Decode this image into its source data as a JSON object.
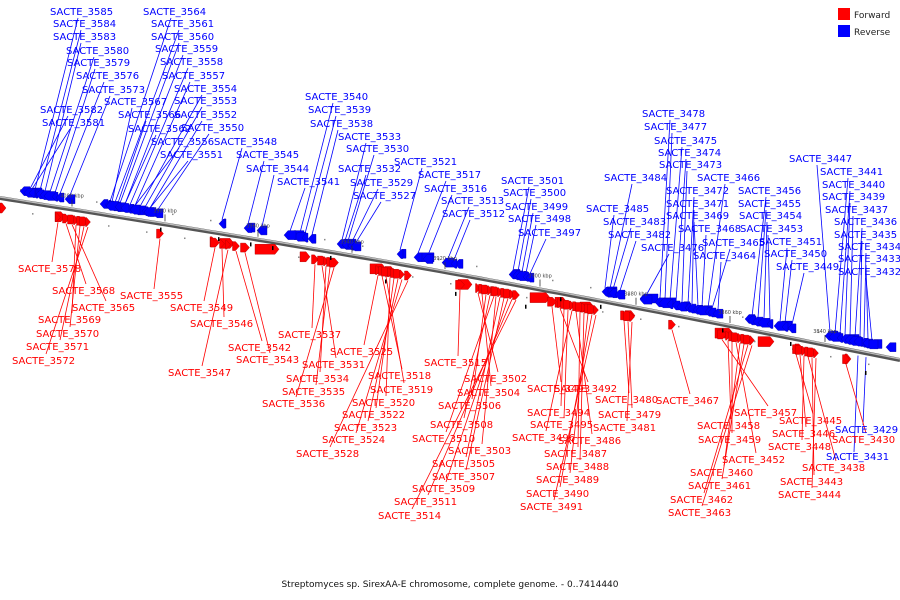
{
  "caption": "Streptomyces sp. SirexAA-E chromosome, complete genome. - 0..7414440",
  "legend": [
    {
      "label": "Forward",
      "color": "#ff0000"
    },
    {
      "label": "Reverse",
      "color": "#0000ff"
    }
  ],
  "ticks": [
    "4000 kbp",
    "3980 kbp",
    "3960 kbp",
    "3940 kbp",
    "3920 kbp",
    "3900 kbp",
    "3880 kbp",
    "3860 kbp",
    "3840 kbp"
  ],
  "reverse_labels": [
    "SACTE_3585",
    "SACTE_3584",
    "SACTE_3583",
    "SACTE_3580",
    "SACTE_3579",
    "SACTE_3576",
    "SACTE_3573",
    "SACTE_3582",
    "SACTE_3581",
    "SACTE_3564",
    "SACTE_3561",
    "SACTE_3560",
    "SACTE_3559",
    "SACTE_3558",
    "SACTE_3557",
    "SACTE_3554",
    "SACTE_3553",
    "SACTE_3552",
    "SACTE_3550",
    "SACTE_3567",
    "SACTE_3566",
    "SACTE_3562",
    "SACTE_3556",
    "SACTE_3551",
    "SACTE_3548",
    "SACTE_3545",
    "SACTE_3544",
    "SACTE_3540",
    "SACTE_3539",
    "SACTE_3538",
    "SACTE_3533",
    "SACTE_3530",
    "SACTE_3532",
    "SACTE_3529",
    "SACTE_3527",
    "SACTE_3541",
    "SACTE_3521",
    "SACTE_3517",
    "SACTE_3516",
    "SACTE_3513",
    "SACTE_3512",
    "SACTE_3501",
    "SACTE_3500",
    "SACTE_3499",
    "SACTE_3498",
    "SACTE_3497",
    "SACTE_3478",
    "SACTE_3477",
    "SACTE_3475",
    "SACTE_3474",
    "SACTE_3473",
    "SACTE_3484",
    "SACTE_3472",
    "SACTE_3471",
    "SACTE_3469",
    "SACTE_3468",
    "SACTE_3485",
    "SACTE_3483",
    "SACTE_3482",
    "SACTE_3476",
    "SACTE_3466",
    "SACTE_3456",
    "SACTE_3455",
    "SACTE_3454",
    "SACTE_3453",
    "SACTE_3465",
    "SACTE_3464",
    "SACTE_3451",
    "SACTE_3450",
    "SACTE_3449",
    "SACTE_3447",
    "SACTE_3441",
    "SACTE_3440",
    "SACTE_3439",
    "SACTE_3437",
    "SACTE_3436",
    "SACTE_3435",
    "SACTE_3434",
    "SACTE_3433",
    "SACTE_3432",
    "SACTE_3429",
    "SACTE_3431"
  ],
  "forward_labels": [
    "SACTE_3578",
    "SACTE_3568",
    "SACTE_3565",
    "SACTE_3569",
    "SACTE_3570",
    "SACTE_3571",
    "SACTE_3572",
    "SACTE_3555",
    "SACTE_3549",
    "SACTE_3546",
    "SACTE_3542",
    "SACTE_3543",
    "SACTE_3547",
    "SACTE_3537",
    "SACTE_3531",
    "SACTE_3534",
    "SACTE_3535",
    "SACTE_3536",
    "SACTE_3525",
    "SACTE_3518",
    "SACTE_3519",
    "SACTE_3520",
    "SACTE_3522",
    "SACTE_3523",
    "SACTE_3524",
    "SACTE_3528",
    "SACTE_3515",
    "SACTE_3502",
    "SACTE_3504",
    "SACTE_3506",
    "SACTE_3508",
    "SACTE_3510",
    "SACTE_3503",
    "SACTE_3505",
    "SACTE_3507",
    "SACTE_3509",
    "SACTE_3511",
    "SACTE_3514",
    "SACTE_3493",
    "SACTE_3492",
    "SACTE_3494",
    "SACTE_3495",
    "SACTE_3496",
    "SACTE_3486",
    "SACTE_3487",
    "SACTE_3488",
    "SACTE_3489",
    "SACTE_3490",
    "SACTE_3491",
    "SACTE_3480",
    "SACTE_3479",
    "SACTE_3481",
    "SACTE_3467",
    "SACTE_3457",
    "SACTE_3458",
    "SACTE_3459",
    "SACTE_3452",
    "SACTE_3460",
    "SACTE_3461",
    "SACTE_3462",
    "SACTE_3463",
    "SACTE_3445",
    "SACTE_3446",
    "SACTE_3448",
    "SACTE_3438",
    "SACTE_3443",
    "SACTE_3444",
    "SACTE_3430"
  ]
}
